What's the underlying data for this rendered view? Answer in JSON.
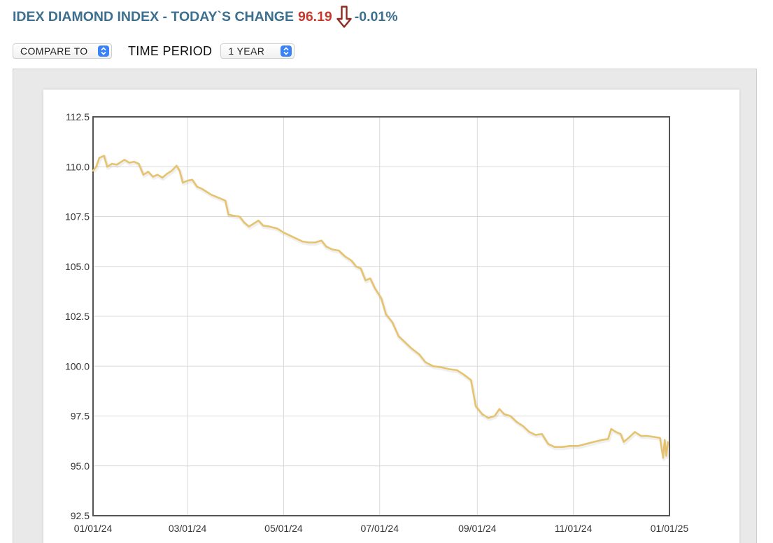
{
  "header": {
    "title": "IDEX DIAMOND INDEX - TODAY`S CHANGE",
    "value": "96.19",
    "change": "-0.01%",
    "direction_icon": "down-arrow-icon",
    "colors": {
      "title": "#3d6f8e",
      "value": "#c53a2c",
      "arrow": "#8e2b23"
    }
  },
  "controls": {
    "compare_label": "COMPARE TO",
    "time_period_label": "TIME PERIOD",
    "time_period_value": "1 YEAR"
  },
  "chart_data": {
    "type": "line",
    "title": "",
    "xlabel": "",
    "ylabel": "",
    "ylim": [
      92.5,
      112.5
    ],
    "y_ticks": [
      "92.5",
      "95.0",
      "97.5",
      "100.0",
      "102.5",
      "105.0",
      "107.5",
      "110.0",
      "112.5"
    ],
    "x_range": [
      "2024-01-01",
      "2025-01-01"
    ],
    "x_ticks": [
      {
        "date": "2024-01-01",
        "label": "01/01/24"
      },
      {
        "date": "2024-03-01",
        "label": "03/01/24"
      },
      {
        "date": "2024-05-01",
        "label": "05/01/24"
      },
      {
        "date": "2024-07-01",
        "label": "07/01/24"
      },
      {
        "date": "2024-09-01",
        "label": "09/01/24"
      },
      {
        "date": "2024-11-01",
        "label": "11/01/24"
      },
      {
        "date": "2025-01-01",
        "label": "01/01/25"
      }
    ],
    "grid": true,
    "line_color": "#e6c46f",
    "series": [
      {
        "name": "",
        "points": [
          [
            "2024-01-01",
            109.8
          ],
          [
            "2024-01-03",
            110.0
          ],
          [
            "2024-01-05",
            110.45
          ],
          [
            "2024-01-08",
            110.55
          ],
          [
            "2024-01-10",
            110.0
          ],
          [
            "2024-01-13",
            110.15
          ],
          [
            "2024-01-16",
            110.1
          ],
          [
            "2024-01-19",
            110.25
          ],
          [
            "2024-01-21",
            110.35
          ],
          [
            "2024-01-24",
            110.2
          ],
          [
            "2024-01-27",
            110.25
          ],
          [
            "2024-01-30",
            110.15
          ],
          [
            "2024-02-02",
            109.6
          ],
          [
            "2024-02-05",
            109.75
          ],
          [
            "2024-02-08",
            109.5
          ],
          [
            "2024-02-11",
            109.6
          ],
          [
            "2024-02-14",
            109.45
          ],
          [
            "2024-02-17",
            109.65
          ],
          [
            "2024-02-20",
            109.8
          ],
          [
            "2024-02-23",
            110.05
          ],
          [
            "2024-02-25",
            109.8
          ],
          [
            "2024-02-27",
            109.2
          ],
          [
            "2024-03-01",
            109.3
          ],
          [
            "2024-03-04",
            109.35
          ],
          [
            "2024-03-07",
            109.0
          ],
          [
            "2024-03-10",
            108.9
          ],
          [
            "2024-03-13",
            108.75
          ],
          [
            "2024-03-16",
            108.6
          ],
          [
            "2024-03-19",
            108.5
          ],
          [
            "2024-03-22",
            108.4
          ],
          [
            "2024-03-25",
            108.3
          ],
          [
            "2024-03-27",
            107.6
          ],
          [
            "2024-03-30",
            107.55
          ],
          [
            "2024-04-03",
            107.5
          ],
          [
            "2024-04-06",
            107.2
          ],
          [
            "2024-04-09",
            107.0
          ],
          [
            "2024-04-12",
            107.15
          ],
          [
            "2024-04-15",
            107.3
          ],
          [
            "2024-04-18",
            107.05
          ],
          [
            "2024-04-22",
            107.0
          ],
          [
            "2024-04-27",
            106.9
          ],
          [
            "2024-05-01",
            106.7
          ],
          [
            "2024-05-05",
            106.55
          ],
          [
            "2024-05-09",
            106.4
          ],
          [
            "2024-05-13",
            106.25
          ],
          [
            "2024-05-17",
            106.2
          ],
          [
            "2024-05-21",
            106.2
          ],
          [
            "2024-05-25",
            106.3
          ],
          [
            "2024-05-28",
            106.0
          ],
          [
            "2024-06-01",
            105.85
          ],
          [
            "2024-06-05",
            105.8
          ],
          [
            "2024-06-09",
            105.5
          ],
          [
            "2024-06-13",
            105.3
          ],
          [
            "2024-06-16",
            105.0
          ],
          [
            "2024-06-19",
            104.9
          ],
          [
            "2024-06-22",
            104.3
          ],
          [
            "2024-06-25",
            104.4
          ],
          [
            "2024-06-28",
            103.9
          ],
          [
            "2024-07-02",
            103.4
          ],
          [
            "2024-07-05",
            102.6
          ],
          [
            "2024-07-09",
            102.2
          ],
          [
            "2024-07-13",
            101.5
          ],
          [
            "2024-07-17",
            101.2
          ],
          [
            "2024-07-21",
            100.9
          ],
          [
            "2024-07-26",
            100.6
          ],
          [
            "2024-07-30",
            100.2
          ],
          [
            "2024-08-04",
            100.0
          ],
          [
            "2024-08-09",
            99.95
          ],
          [
            "2024-08-14",
            99.85
          ],
          [
            "2024-08-19",
            99.8
          ],
          [
            "2024-08-23",
            99.6
          ],
          [
            "2024-08-28",
            99.3
          ],
          [
            "2024-08-31",
            98.0
          ],
          [
            "2024-09-04",
            97.6
          ],
          [
            "2024-09-08",
            97.4
          ],
          [
            "2024-09-12",
            97.5
          ],
          [
            "2024-09-15",
            97.85
          ],
          [
            "2024-09-18",
            97.6
          ],
          [
            "2024-09-22",
            97.5
          ],
          [
            "2024-09-26",
            97.2
          ],
          [
            "2024-09-30",
            97.0
          ],
          [
            "2024-10-04",
            96.7
          ],
          [
            "2024-10-08",
            96.55
          ],
          [
            "2024-10-12",
            96.6
          ],
          [
            "2024-10-16",
            96.1
          ],
          [
            "2024-10-20",
            95.95
          ],
          [
            "2024-10-25",
            95.95
          ],
          [
            "2024-10-30",
            96.0
          ],
          [
            "2024-11-04",
            96.0
          ],
          [
            "2024-11-09",
            96.1
          ],
          [
            "2024-11-14",
            96.2
          ],
          [
            "2024-11-19",
            96.3
          ],
          [
            "2024-11-23",
            96.35
          ],
          [
            "2024-11-25",
            96.85
          ],
          [
            "2024-11-28",
            96.7
          ],
          [
            "2024-12-01",
            96.6
          ],
          [
            "2024-12-03",
            96.2
          ],
          [
            "2024-12-06",
            96.4
          ],
          [
            "2024-12-10",
            96.7
          ],
          [
            "2024-12-14",
            96.5
          ],
          [
            "2024-12-18",
            96.5
          ],
          [
            "2024-12-22",
            96.45
          ],
          [
            "2024-12-26",
            96.4
          ],
          [
            "2024-12-28",
            95.4
          ],
          [
            "2024-12-29",
            96.3
          ],
          [
            "2024-12-30",
            95.5
          ],
          [
            "2024-12-31",
            96.19
          ]
        ]
      }
    ]
  }
}
